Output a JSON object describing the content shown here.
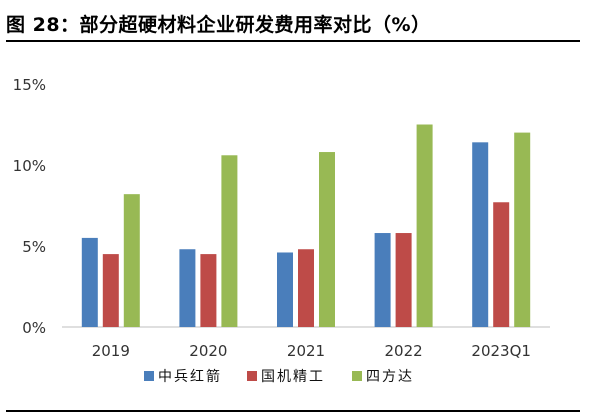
{
  "title": "图 28：部分超硬材料企业研发费用率对比（%）",
  "chart_data": {
    "type": "bar",
    "categories": [
      "2019",
      "2020",
      "2021",
      "2022",
      "2023Q1"
    ],
    "series": [
      {
        "name": "中兵红箭",
        "color": "#4a7ebb",
        "values": [
          5.5,
          4.8,
          4.6,
          5.8,
          11.4
        ]
      },
      {
        "name": "国机精工",
        "color": "#be4b48",
        "values": [
          4.5,
          4.5,
          4.8,
          5.8,
          7.7
        ]
      },
      {
        "name": "四方达",
        "color": "#98b954",
        "values": [
          8.2,
          10.6,
          10.8,
          12.5,
          12.0
        ]
      }
    ],
    "ylim": [
      0,
      15
    ],
    "yticks": [
      "0%",
      "5%",
      "10%",
      "15%"
    ],
    "ytick_values": [
      0,
      5,
      10,
      15
    ],
    "grid": false,
    "legend_position": "bottom-center",
    "xlabel": "",
    "ylabel": ""
  }
}
